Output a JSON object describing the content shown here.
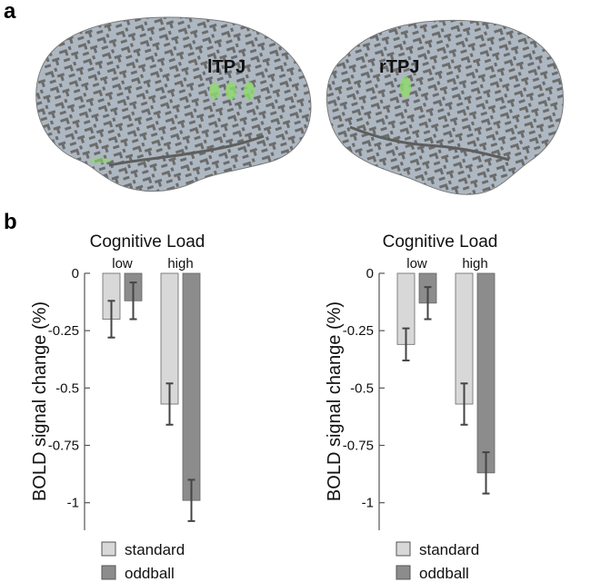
{
  "panels": {
    "a_label": "a",
    "b_label": "b"
  },
  "brain": {
    "left_roi": "lTPJ",
    "right_roi": "rTPJ",
    "roi_color": "#8fd870",
    "cortex_light": "#aeb8c2",
    "cortex_dark": "#6c6c6c"
  },
  "legend": {
    "standard_label": "standard",
    "oddball_label": "oddball",
    "standard_color": "#d8d8d8",
    "oddball_color": "#8c8c8c"
  },
  "chart_data": [
    {
      "type": "bar",
      "title": "Cognitive Load",
      "ylabel": "BOLD signal change (%)",
      "categories": [
        "low",
        "high"
      ],
      "yticks": [
        "0",
        "-0.25",
        "-0.5",
        "-0.75",
        "-1"
      ],
      "ylim": [
        -1.12,
        0
      ],
      "grid": false,
      "series": [
        {
          "name": "standard",
          "values": [
            -0.2,
            -0.57
          ],
          "errors": [
            0.08,
            0.09
          ]
        },
        {
          "name": "oddball",
          "values": [
            -0.12,
            -0.99
          ],
          "errors": [
            0.08,
            0.09
          ]
        }
      ]
    },
    {
      "type": "bar",
      "title": "Cognitive Load",
      "ylabel": "BOLD signal change (%)",
      "categories": [
        "low",
        "high"
      ],
      "yticks": [
        "0",
        "-0.25",
        "-0.5",
        "-0.75",
        "-1"
      ],
      "ylim": [
        -1.12,
        0
      ],
      "grid": false,
      "series": [
        {
          "name": "standard",
          "values": [
            -0.31,
            -0.57
          ],
          "errors": [
            0.07,
            0.09
          ]
        },
        {
          "name": "oddball",
          "values": [
            -0.13,
            -0.87
          ],
          "errors": [
            0.07,
            0.09
          ]
        }
      ]
    }
  ]
}
